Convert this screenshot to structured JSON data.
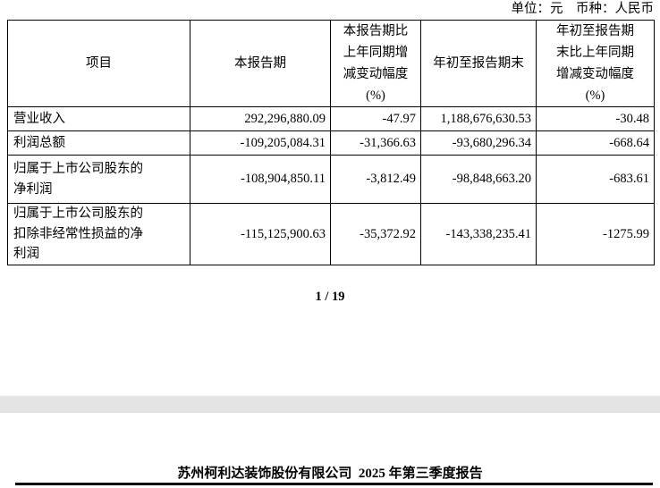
{
  "meta": {
    "unit_line": "单位：元　币种：人民币"
  },
  "table": {
    "headers": {
      "item": "项目",
      "current_period": "本报告期",
      "current_period_yoy": "本报告期比\n上年同期增\n减变动幅度\n(%)",
      "ytd": "年初至报告期末",
      "ytd_yoy": "年初至报告期\n末比上年同期\n增减变动幅度\n(%)"
    },
    "rows": [
      {
        "label": "营业收入",
        "current_period": "292,296,880.09",
        "current_period_yoy": "-47.97",
        "ytd": "1,188,676,630.53",
        "ytd_yoy": "-30.48"
      },
      {
        "label": "利润总额",
        "current_period": "-109,205,084.31",
        "current_period_yoy": "-31,366.63",
        "ytd": "-93,680,296.34",
        "ytd_yoy": "-668.64"
      },
      {
        "label": "归属于上市公司股东的\n净利润",
        "current_period": "-108,904,850.11",
        "current_period_yoy": "-3,812.49",
        "ytd": "-98,848,663.20",
        "ytd_yoy": "-683.61"
      },
      {
        "label": "归属于上市公司股东的\n扣除非经常性损益的净\n利润",
        "current_period": "-115,125,900.63",
        "current_period_yoy": "-35,372.92",
        "ytd": "-143,338,235.41",
        "ytd_yoy": "-1275.99"
      }
    ]
  },
  "pagination": {
    "page_indicator": "1 / 19"
  },
  "next_page": {
    "header_title": "苏州柯利达装饰股份有限公司  2025 年第三季度报告"
  },
  "colors": {
    "page_background": "#ffffff",
    "page_gap": "#e4e4e4",
    "text": "#000000",
    "table_border": "#000000"
  }
}
